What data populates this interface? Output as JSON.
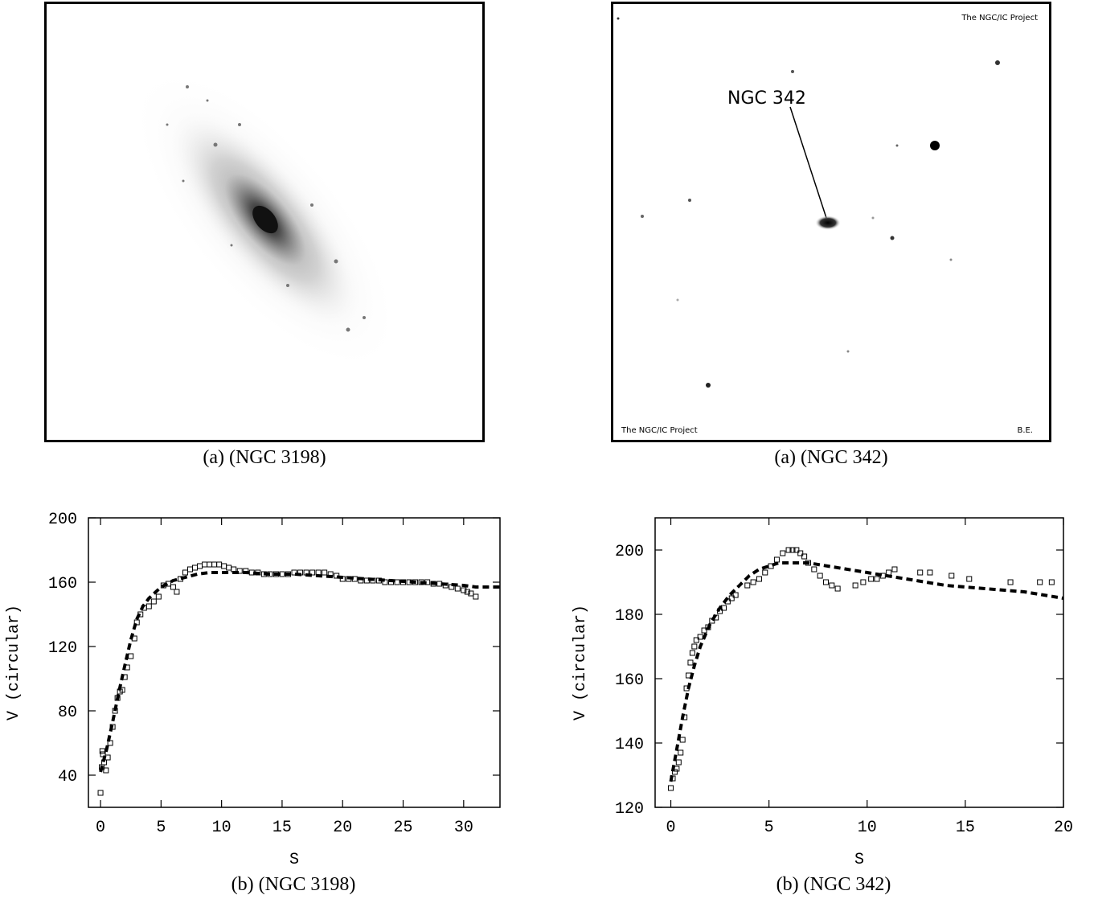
{
  "panels": {
    "top_left_caption": "(a) (NGC 3198)",
    "top_right_caption": "(a) (NGC 342)",
    "bottom_left_caption": "(b) (NGC 3198)",
    "bottom_right_caption": "(b) (NGC 342)"
  },
  "images": {
    "ngc342": {
      "label": "NGC 342",
      "credit_top": "The NGC/IC Project",
      "credit_bottom_left": "The NGC/IC Project",
      "credit_bottom_right": "B.E."
    }
  },
  "chart_data": [
    {
      "type": "scatter",
      "name": "NGC 3198",
      "xlabel": "S",
      "ylabel": "V (circular)",
      "xlim": [
        -1,
        33
      ],
      "ylim": [
        20,
        200
      ],
      "xticks": [
        0,
        5,
        10,
        15,
        20,
        25,
        30
      ],
      "yticks": [
        40,
        80,
        120,
        160,
        200
      ],
      "observed": {
        "marker": "open-square",
        "x": [
          0.0,
          0.1,
          0.15,
          0.2,
          0.3,
          0.45,
          0.6,
          0.8,
          1.0,
          1.2,
          1.4,
          1.6,
          1.8,
          2.0,
          2.2,
          2.5,
          2.8,
          3.0,
          3.3,
          3.6,
          4.0,
          4.4,
          4.8,
          5.2,
          5.6,
          6.0,
          6.3,
          6.6,
          7.0,
          7.4,
          7.8,
          8.2,
          8.6,
          9.0,
          9.4,
          9.8,
          10.2,
          10.6,
          11.0,
          11.5,
          12.0,
          12.5,
          13.0,
          13.5,
          14.0,
          14.5,
          15.0,
          15.5,
          16.0,
          16.5,
          17.0,
          17.5,
          18.0,
          18.5,
          19.0,
          19.5,
          20.0,
          20.5,
          21.0,
          21.5,
          22.0,
          22.5,
          23.0,
          23.5,
          24.0,
          24.5,
          25.0,
          25.5,
          26.0,
          26.5,
          27.0,
          27.5,
          28.0,
          28.5,
          29.0,
          29.5,
          30.0,
          30.3,
          30.6,
          31.0
        ],
        "y": [
          29,
          45,
          55,
          53,
          48,
          43,
          51,
          60,
          70,
          80,
          88,
          92,
          93,
          101,
          107,
          114,
          125,
          135,
          140,
          144,
          145,
          148,
          151,
          158,
          159,
          157,
          154,
          162,
          166,
          168,
          169,
          170,
          171,
          171,
          171,
          171,
          170,
          169,
          168,
          167,
          167,
          166,
          166,
          165,
          165,
          165,
          165,
          165,
          166,
          166,
          166,
          166,
          166,
          166,
          165,
          164,
          162,
          162,
          162,
          161,
          161,
          161,
          161,
          160,
          160,
          160,
          160,
          160,
          160,
          160,
          160,
          159,
          159,
          158,
          157,
          156,
          155,
          154,
          153,
          151
        ]
      },
      "model": {
        "style": "dashed",
        "x": [
          0,
          0.5,
          1,
          1.5,
          2,
          2.5,
          3,
          3.5,
          4,
          5,
          6,
          7,
          8,
          9,
          10,
          11,
          12,
          14,
          16,
          18,
          20,
          22,
          24,
          26,
          28,
          30,
          31,
          32,
          33
        ],
        "y": [
          42,
          56,
          73,
          91,
          108,
          124,
          137,
          145,
          150,
          157,
          161,
          163,
          165,
          166,
          166,
          166,
          166,
          165,
          165,
          164,
          163,
          162,
          161,
          160,
          159,
          158,
          157,
          157,
          157
        ]
      }
    },
    {
      "type": "scatter",
      "name": "NGC 342",
      "xlabel": "S",
      "ylabel": "V (circular)",
      "xlim": [
        -0.8,
        20
      ],
      "ylim": [
        120,
        210
      ],
      "xticks": [
        0,
        5,
        10,
        15,
        20
      ],
      "yticks": [
        120,
        140,
        160,
        180,
        200
      ],
      "observed": {
        "marker": "open-square",
        "x": [
          0.0,
          0.1,
          0.2,
          0.3,
          0.4,
          0.5,
          0.6,
          0.7,
          0.8,
          0.9,
          1.0,
          1.1,
          1.2,
          1.3,
          1.5,
          1.7,
          1.9,
          2.1,
          2.3,
          2.5,
          2.7,
          2.9,
          3.1,
          3.3,
          3.9,
          4.2,
          4.5,
          4.8,
          5.1,
          5.4,
          5.7,
          6.0,
          6.2,
          6.4,
          6.6,
          6.8,
          7.0,
          7.3,
          7.6,
          7.9,
          8.2,
          8.5,
          9.4,
          9.8,
          10.2,
          10.5,
          10.8,
          11.1,
          11.4,
          12.7,
          13.2,
          14.3,
          15.2,
          17.3,
          18.8,
          19.4
        ],
        "y": [
          126,
          129,
          131,
          132,
          134,
          137,
          141,
          148,
          157,
          161,
          165,
          168,
          170,
          172,
          173,
          175,
          176,
          178,
          179,
          181,
          182,
          184,
          185,
          186,
          189,
          190,
          191,
          193,
          195,
          197,
          199,
          200,
          200,
          200,
          199,
          198,
          196,
          194,
          192,
          190,
          189,
          188,
          189,
          190,
          191,
          191,
          192,
          193,
          194,
          193,
          193,
          192,
          191,
          190,
          190,
          190
        ]
      },
      "model": {
        "style": "dashed",
        "x": [
          0,
          0.3,
          0.6,
          0.9,
          1.2,
          1.5,
          2.0,
          2.5,
          3.0,
          3.5,
          4.0,
          4.5,
          5.0,
          5.5,
          6.0,
          6.5,
          7.0,
          8.0,
          9.0,
          10.0,
          11.0,
          12.0,
          14.0,
          16.0,
          18.0,
          20.0
        ],
        "y": [
          128,
          138,
          148,
          157,
          164,
          170,
          177,
          182,
          186,
          189,
          192,
          194,
          195,
          196,
          196,
          196,
          196,
          195,
          194,
          193,
          192,
          191,
          189,
          188,
          187,
          185
        ]
      }
    }
  ]
}
